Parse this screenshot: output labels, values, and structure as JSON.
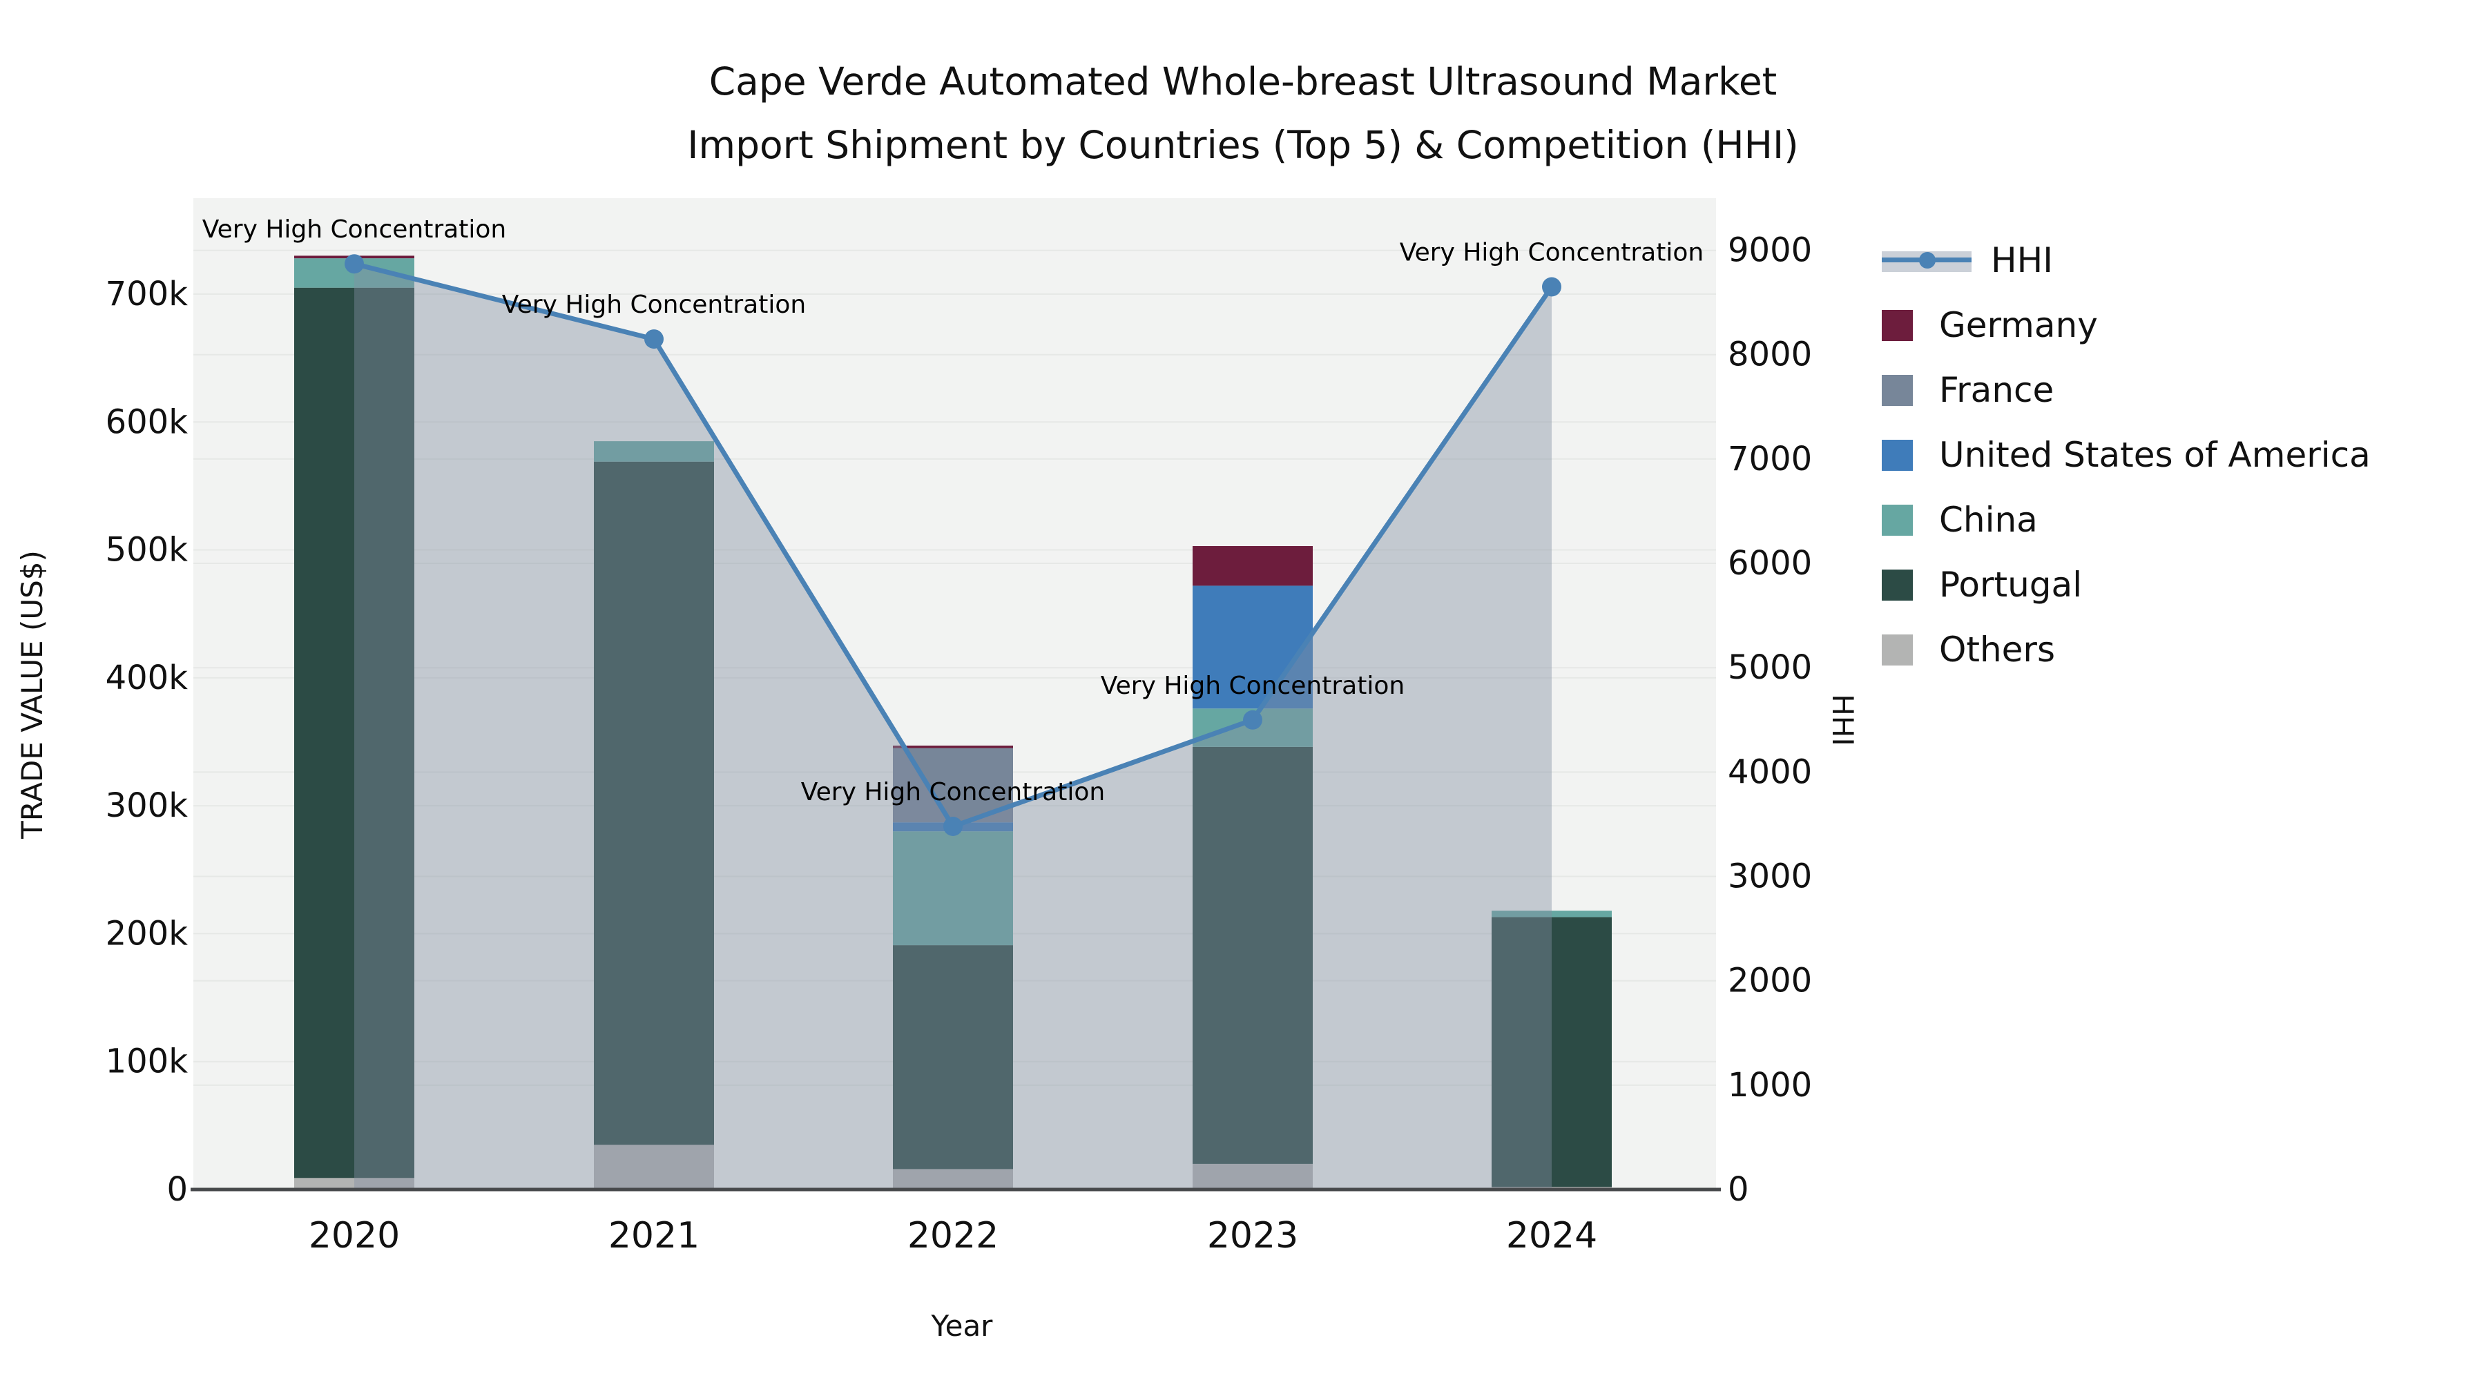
{
  "title": {
    "line1": "Cape Verde Automated Whole-breast Ultrasound Market",
    "line2": "Import Shipment by Countries (Top 5) & Competition (HHI)"
  },
  "axis_titles": {
    "y_left": "TRADE VALUE (US$)",
    "y_right": "HHI",
    "x": "Year"
  },
  "colors": {
    "background": "#ffffff",
    "plot_background": "#f2f3f2",
    "gridline": "#e6e8e6",
    "baseline": "#47494b",
    "text": "#111111",
    "hhi_line": "#4a82b5",
    "hhi_fill": "rgba(130,142,162,0.42)"
  },
  "legend": {
    "items": [
      {
        "label": "HHI",
        "type": "line",
        "color": "#4a82b5"
      },
      {
        "label": "Germany",
        "type": "box",
        "color": "#6d1d3d"
      },
      {
        "label": "France",
        "type": "box",
        "color": "#778699"
      },
      {
        "label": "United States of America",
        "type": "box",
        "color": "#3f7cba"
      },
      {
        "label": "China",
        "type": "box",
        "color": "#66a7a2"
      },
      {
        "label": "Portugal",
        "type": "box",
        "color": "#2c4b45"
      },
      {
        "label": "Others",
        "type": "box",
        "color": "#b3b4b3"
      }
    ]
  },
  "chart_data": {
    "type": "bar",
    "subtype": "stacked-bars-with-line-overlay",
    "categories": [
      "2020",
      "2021",
      "2022",
      "2023",
      "2024"
    ],
    "xlabel": "Year",
    "ylabel_left": "TRADE VALUE (US$)",
    "ylabel_right": "HHI",
    "y_left_ticks": [
      {
        "value": 0,
        "label": "0"
      },
      {
        "value": 100000,
        "label": "100k"
      },
      {
        "value": 200000,
        "label": "200k"
      },
      {
        "value": 300000,
        "label": "300k"
      },
      {
        "value": 400000,
        "label": "400k"
      },
      {
        "value": 500000,
        "label": "500k"
      },
      {
        "value": 600000,
        "label": "600k"
      },
      {
        "value": 700000,
        "label": "700k"
      }
    ],
    "y_right_ticks": [
      {
        "value": 0,
        "label": "0"
      },
      {
        "value": 1000,
        "label": "1000"
      },
      {
        "value": 2000,
        "label": "2000"
      },
      {
        "value": 3000,
        "label": "3000"
      },
      {
        "value": 4000,
        "label": "4000"
      },
      {
        "value": 5000,
        "label": "5000"
      },
      {
        "value": 6000,
        "label": "6000"
      },
      {
        "value": 7000,
        "label": "7000"
      },
      {
        "value": 8000,
        "label": "8000"
      },
      {
        "value": 9000,
        "label": "9000"
      }
    ],
    "y_left_max_at_plot_top": 775000,
    "y_right_max_at_plot_top": 9500,
    "grid": true,
    "legend_position": "right",
    "series": [
      {
        "name": "Others",
        "color": "#b3b4b3",
        "values": [
          9000,
          35000,
          16000,
          20000,
          2000
        ]
      },
      {
        "name": "Portugal",
        "color": "#2c4b45",
        "values": [
          696000,
          534000,
          175000,
          326000,
          211000
        ]
      },
      {
        "name": "China",
        "color": "#66a7a2",
        "values": [
          23000,
          16000,
          89000,
          30000,
          5000
        ]
      },
      {
        "name": "United States of America",
        "color": "#3f7cba",
        "values": [
          0,
          0,
          7000,
          96000,
          0
        ]
      },
      {
        "name": "France",
        "color": "#778699",
        "values": [
          0,
          0,
          58000,
          0,
          0
        ]
      },
      {
        "name": "Germany",
        "color": "#6d1d3d",
        "values": [
          2000,
          0,
          2000,
          31000,
          0
        ]
      }
    ],
    "bar_totals": [
      730000,
      585000,
      347000,
      503000,
      218000
    ],
    "line_series": {
      "name": "HHI",
      "color": "#4a82b5",
      "area_fill": "rgba(130,142,162,0.42)",
      "values": [
        8870,
        8150,
        3480,
        4500,
        8650
      ]
    },
    "annotations": [
      {
        "text": "Very High Concentration",
        "category": "2020"
      },
      {
        "text": "Very High Concentration",
        "category": "2021"
      },
      {
        "text": "Very High Concentration",
        "category": "2022"
      },
      {
        "text": "Very High Concentration",
        "category": "2023"
      },
      {
        "text": "Very High Concentration",
        "category": "2024"
      }
    ]
  }
}
